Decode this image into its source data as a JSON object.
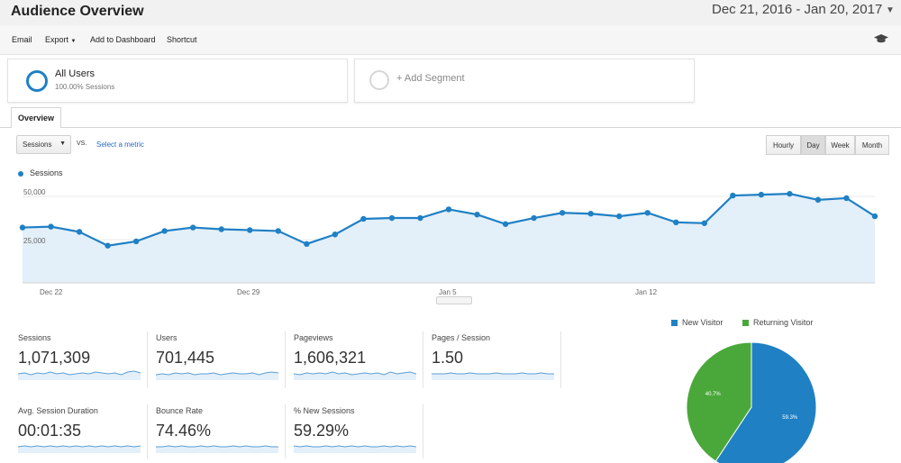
{
  "header": {
    "title": "Audience Overview",
    "date_range": "Dec 21, 2016 - Jan 20, 2017"
  },
  "toolbar": {
    "email": "Email",
    "export": "Export",
    "add_to_dashboard": "Add to Dashboard",
    "shortcut": "Shortcut"
  },
  "segments": {
    "all_users": {
      "name": "All Users",
      "sub": "100.00% Sessions"
    },
    "add_segment": "+ Add Segment"
  },
  "tabs": {
    "overview": "Overview"
  },
  "controls": {
    "metric": "Sessions",
    "vs": "VS.",
    "select_metric": "Select a metric",
    "granularity": [
      "Hourly",
      "Day",
      "Week",
      "Month"
    ],
    "active_granularity": "Day"
  },
  "chart_data": {
    "type": "area",
    "series": [
      {
        "name": "Sessions",
        "color": "#1f80c4",
        "values": [
          32000,
          32500,
          29500,
          21500,
          24000,
          30000,
          32000,
          31000,
          30500,
          30000,
          22500,
          28000,
          37000,
          37500,
          37500,
          42500,
          39500,
          34000,
          37500,
          40500,
          40000,
          38500,
          40500,
          35000,
          34500,
          50500,
          51000,
          51500,
          48000,
          49000,
          38500
        ]
      }
    ],
    "x_start": "2016-12-21",
    "x_ticks": [
      "Dec 22",
      "Dec 29",
      "Jan 5",
      "Jan 12"
    ],
    "y_ticks": [
      "25,000",
      "50,000"
    ],
    "ylim": [
      0,
      62000
    ],
    "grid": true,
    "legend": "top-left"
  },
  "scorecards": [
    {
      "label": "Sessions",
      "value": "1,071,309"
    },
    {
      "label": "Users",
      "value": "701,445"
    },
    {
      "label": "Pageviews",
      "value": "1,606,321"
    },
    {
      "label": "Pages / Session",
      "value": "1.50"
    },
    {
      "label": "Avg. Session Duration",
      "value": "00:01:35"
    },
    {
      "label": "Bounce Rate",
      "value": "74.46%"
    },
    {
      "label": "% New Sessions",
      "value": "59.29%"
    }
  ],
  "pie": {
    "type": "pie",
    "legend": [
      "New Visitor",
      "Returning Visitor"
    ],
    "slices": [
      {
        "name": "New Visitor",
        "value": 59.3,
        "label": "59.3%",
        "color": "#1f80c4"
      },
      {
        "name": "Returning Visitor",
        "value": 40.7,
        "label": "40.7%",
        "color": "#4aa83a"
      }
    ]
  }
}
